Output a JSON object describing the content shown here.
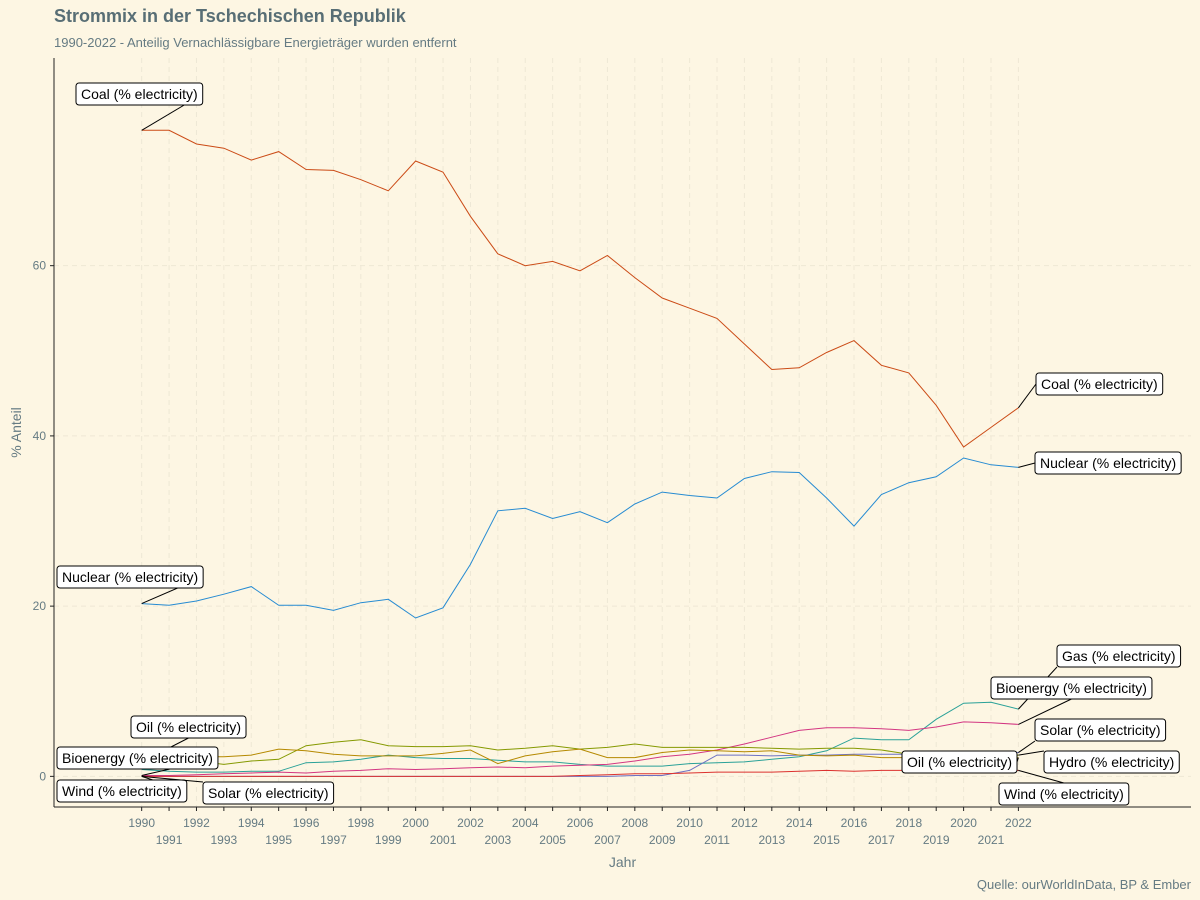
{
  "header": {
    "title": "Strommix in der Tschechischen Republik",
    "subtitle": "1990-2022 - Anteilig Vernachlässigbare Energieträger wurden entfernt"
  },
  "caption": "Quelle: ourWorldInData, BP & Ember",
  "chart_data": {
    "type": "line",
    "title": "Strommix in der Tschechischen Republik",
    "subtitle": "1990-2022 - Anteilig Vernachlässigbare Energieträger wurden entfernt",
    "xlabel": "Jahr",
    "ylabel": "% Anteil",
    "xlim": [
      1986.8,
      2028.3
    ],
    "ylim": [
      -3.6,
      84.4
    ],
    "x_ticks": [
      1990,
      1991,
      1992,
      1993,
      1994,
      1995,
      1996,
      1997,
      1998,
      1999,
      2000,
      2001,
      2002,
      2003,
      2004,
      2005,
      2006,
      2007,
      2008,
      2009,
      2010,
      2011,
      2012,
      2013,
      2014,
      2015,
      2016,
      2017,
      2018,
      2019,
      2020,
      2021,
      2022
    ],
    "y_ticks": [
      0,
      20,
      40,
      60
    ],
    "grid": true,
    "legend": "direct labels at line ends",
    "series": [
      {
        "name": "Coal (% electricity)",
        "color": "#cb4b16",
        "x": [
          1990,
          1991,
          1992,
          1993,
          1994,
          1995,
          1996,
          1997,
          1998,
          1999,
          2000,
          2001,
          2002,
          2003,
          2004,
          2005,
          2006,
          2007,
          2008,
          2009,
          2010,
          2011,
          2012,
          2013,
          2014,
          2015,
          2016,
          2017,
          2018,
          2019,
          2020,
          2021,
          2022
        ],
        "y": [
          75.9,
          75.9,
          74.3,
          73.8,
          72.4,
          73.4,
          71.3,
          71.2,
          70.1,
          68.8,
          72.3,
          71.0,
          65.8,
          61.4,
          60.0,
          60.5,
          59.4,
          61.2,
          58.6,
          56.2,
          55.0,
          53.8,
          50.8,
          47.8,
          48.0,
          49.8,
          51.2,
          48.3,
          47.4,
          43.6,
          38.7,
          41.0,
          43.3
        ]
      },
      {
        "name": "Nuclear (% electricity)",
        "color": "#268bd2",
        "x": [
          1990,
          1991,
          1992,
          1993,
          1994,
          1995,
          1996,
          1997,
          1998,
          1999,
          2000,
          2001,
          2002,
          2003,
          2004,
          2005,
          2006,
          2007,
          2008,
          2009,
          2010,
          2011,
          2012,
          2013,
          2014,
          2015,
          2016,
          2017,
          2018,
          2019,
          2020,
          2021,
          2022
        ],
        "y": [
          20.3,
          20.1,
          20.6,
          21.4,
          22.3,
          20.1,
          20.1,
          19.5,
          20.4,
          20.8,
          18.6,
          19.8,
          24.9,
          31.2,
          31.5,
          30.3,
          31.1,
          29.8,
          32.0,
          33.4,
          33.0,
          32.7,
          35.0,
          35.8,
          35.7,
          32.7,
          29.4,
          33.1,
          34.5,
          35.2,
          37.4,
          36.6,
          36.3
        ]
      },
      {
        "name": "Gas (% electricity)",
        "color": "#2aa198",
        "x": [
          1990,
          1991,
          1992,
          1993,
          1994,
          1995,
          1996,
          1997,
          1998,
          1999,
          2000,
          2001,
          2002,
          2003,
          2004,
          2005,
          2006,
          2007,
          2008,
          2009,
          2010,
          2011,
          2012,
          2013,
          2014,
          2015,
          2016,
          2017,
          2018,
          2019,
          2020,
          2021,
          2022
        ],
        "y": [
          0.8,
          0.6,
          0.5,
          0.5,
          0.6,
          0.6,
          1.6,
          1.7,
          2.0,
          2.5,
          2.2,
          2.1,
          2.1,
          1.9,
          1.7,
          1.7,
          1.4,
          1.2,
          1.2,
          1.2,
          1.5,
          1.6,
          1.7,
          2.0,
          2.3,
          3.0,
          4.5,
          4.3,
          4.3,
          6.7,
          8.6,
          8.7,
          7.9
        ]
      },
      {
        "name": "Bioenergy (% electricity)",
        "color": "#d33682",
        "x": [
          1990,
          1991,
          1992,
          1993,
          1994,
          1995,
          1996,
          1997,
          1998,
          1999,
          2000,
          2001,
          2002,
          2003,
          2004,
          2005,
          2006,
          2007,
          2008,
          2009,
          2010,
          2011,
          2012,
          2013,
          2014,
          2015,
          2016,
          2017,
          2018,
          2019,
          2020,
          2021,
          2022
        ],
        "y": [
          0.1,
          0.1,
          0.2,
          0.3,
          0.4,
          0.5,
          0.4,
          0.6,
          0.7,
          0.9,
          0.8,
          0.9,
          1.0,
          1.1,
          1.0,
          1.2,
          1.3,
          1.4,
          1.8,
          2.3,
          2.6,
          3.1,
          3.8,
          4.6,
          5.4,
          5.7,
          5.7,
          5.6,
          5.4,
          5.8,
          6.4,
          6.3,
          6.1
        ]
      },
      {
        "name": "Solar (% electricity)",
        "color": "#6c71c4",
        "x": [
          1990,
          1991,
          1992,
          1993,
          1994,
          1995,
          1996,
          1997,
          1998,
          1999,
          2000,
          2001,
          2002,
          2003,
          2004,
          2005,
          2006,
          2007,
          2008,
          2009,
          2010,
          2011,
          2012,
          2013,
          2014,
          2015,
          2016,
          2017,
          2018,
          2019,
          2020,
          2021,
          2022
        ],
        "y": [
          0,
          0,
          0,
          0,
          0,
          0,
          0,
          0,
          0,
          0,
          0,
          0,
          0,
          0,
          0,
          0,
          0,
          0,
          0.1,
          0.1,
          0.7,
          2.5,
          2.5,
          2.4,
          2.5,
          2.5,
          2.6,
          2.6,
          2.6,
          2.7,
          2.8,
          2.6,
          2.8
        ]
      },
      {
        "name": "Hydro (% electricity)",
        "color": "#859900",
        "x": [
          1990,
          1991,
          1992,
          1993,
          1994,
          1995,
          1996,
          1997,
          1998,
          1999,
          2000,
          2001,
          2002,
          2003,
          2004,
          2005,
          2006,
          2007,
          2008,
          2009,
          2010,
          2011,
          2012,
          2013,
          2014,
          2015,
          2016,
          2017,
          2018,
          2019,
          2020,
          2021,
          2022
        ],
        "y": [
          1.6,
          1.6,
          1.8,
          1.4,
          1.8,
          2.0,
          3.6,
          4.0,
          4.3,
          3.6,
          3.5,
          3.5,
          3.6,
          3.1,
          3.3,
          3.6,
          3.2,
          3.4,
          3.8,
          3.4,
          3.4,
          3.4,
          3.4,
          3.3,
          3.2,
          3.3,
          3.3,
          3.1,
          2.6,
          2.4,
          2.3,
          2.2,
          2.5
        ]
      },
      {
        "name": "Oil (% electricity)",
        "color": "#b58900",
        "x": [
          1990,
          1991,
          1992,
          1993,
          1994,
          1995,
          1996,
          1997,
          1998,
          1999,
          2000,
          2001,
          2002,
          2003,
          2004,
          2005,
          2006,
          2007,
          2008,
          2009,
          2010,
          2011,
          2012,
          2013,
          2014,
          2015,
          2016,
          2017,
          2018,
          2019,
          2020,
          2021,
          2022
        ],
        "y": [
          1.7,
          1.6,
          2.3,
          2.3,
          2.5,
          3.2,
          3.0,
          2.6,
          2.4,
          2.4,
          2.4,
          2.7,
          3.1,
          1.5,
          2.4,
          2.9,
          3.2,
          2.2,
          2.2,
          2.8,
          3.1,
          3.0,
          2.9,
          3.0,
          2.5,
          2.4,
          2.5,
          2.2,
          2.2,
          2.1,
          1.9,
          2.0,
          2.2
        ]
      },
      {
        "name": "Wind (% electricity)",
        "color": "#dc322f",
        "x": [
          1990,
          1991,
          1992,
          1993,
          1994,
          1995,
          1996,
          1997,
          1998,
          1999,
          2000,
          2001,
          2002,
          2003,
          2004,
          2005,
          2006,
          2007,
          2008,
          2009,
          2010,
          2011,
          2012,
          2013,
          2014,
          2015,
          2016,
          2017,
          2018,
          2019,
          2020,
          2021,
          2022
        ],
        "y": [
          0,
          0,
          0,
          0,
          0,
          0,
          0,
          0,
          0,
          0,
          0,
          0,
          0,
          0,
          0,
          0,
          0.1,
          0.2,
          0.3,
          0.3,
          0.4,
          0.5,
          0.5,
          0.5,
          0.6,
          0.7,
          0.6,
          0.7,
          0.7,
          0.8,
          0.8,
          0.7,
          0.7
        ]
      }
    ],
    "annotations": {
      "start": [
        {
          "text": "Coal (% electricity)",
          "series": 0
        },
        {
          "text": "Nuclear (% electricity)",
          "series": 1
        },
        {
          "text": "Oil (% electricity)",
          "series": 6
        },
        {
          "text": "Bioenergy (% electricity)",
          "series": 3
        },
        {
          "text": "Wind (% electricity)",
          "series": 7
        },
        {
          "text": "Solar (% electricity)",
          "series": 4
        }
      ],
      "end": [
        {
          "text": "Coal (% electricity)",
          "series": 0
        },
        {
          "text": "Nuclear (% electricity)",
          "series": 1
        },
        {
          "text": "Gas (% electricity)",
          "series": 2
        },
        {
          "text": "Bioenergy (% electricity)",
          "series": 3
        },
        {
          "text": "Solar (% electricity)",
          "series": 4
        },
        {
          "text": "Hydro (% electricity)",
          "series": 5
        },
        {
          "text": "Oil (% electricity)",
          "series": 6
        },
        {
          "text": "Wind (% electricity)",
          "series": 7
        }
      ]
    }
  }
}
